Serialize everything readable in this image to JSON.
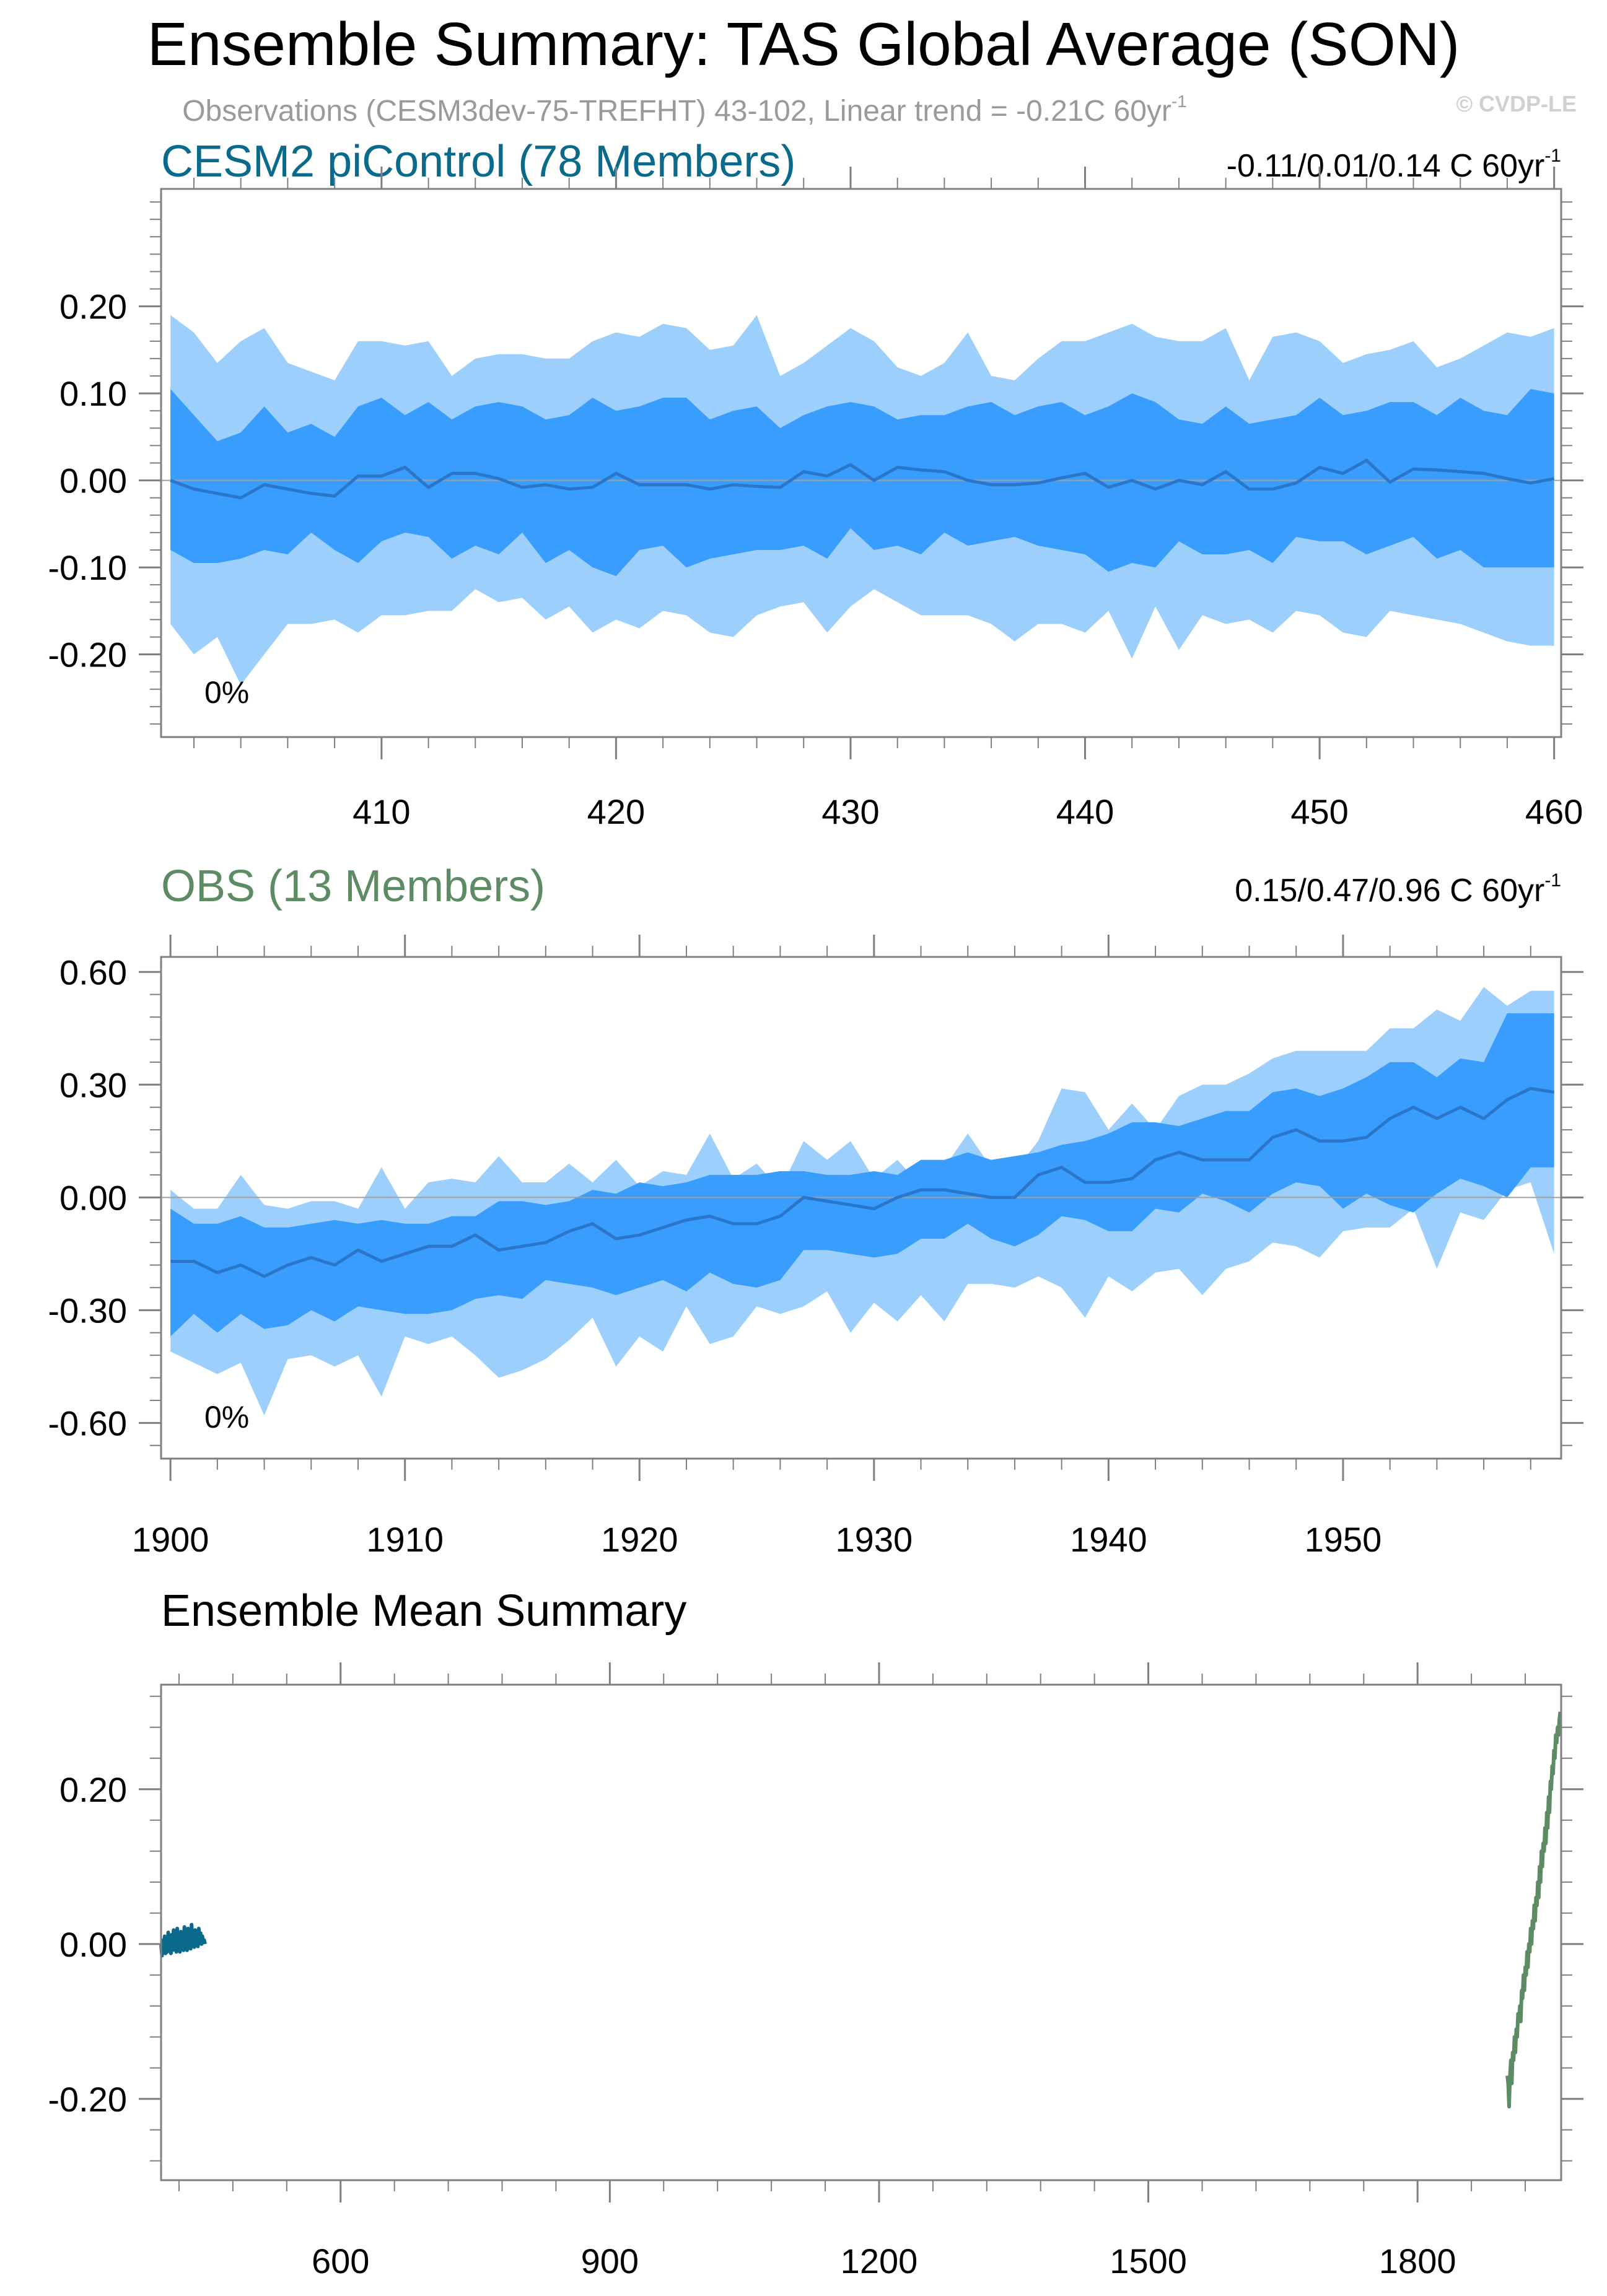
{
  "title": "Ensemble Summary: TAS Global Average (SON)",
  "subtitle": "Observations (CESM3dev-75-TREFHT) 43-102, Linear trend = -0.21C 60yr",
  "subtitle_sup": "-1",
  "watermark": "© CVDP-LE",
  "colors": {
    "band_outer": "#9ccffc",
    "band_inner": "#389dfd",
    "mean_line": "#2a76cb",
    "zero_line": "#a0a0a0",
    "cesm_title": "#0a6a8c",
    "obs_title": "#5d8b63",
    "axis": "#000000",
    "grid": "#bfbfbf"
  },
  "chart_data": [
    {
      "id": "cesm2",
      "type": "area",
      "title": "CESM2 piControl (78 Members)",
      "trend_label": "-0.11/0.01/0.14 C 60yr",
      "trend_sup": "-1",
      "percent_label": "0%",
      "x_start": 401,
      "xlim": [
        400.6,
        460.3
      ],
      "ylim": [
        -0.295,
        0.335
      ],
      "xticks": [
        410,
        420,
        430,
        440,
        450,
        460
      ],
      "yticks": [
        0.2,
        0.1,
        0.0,
        -0.1,
        -0.2
      ],
      "ytick_labels": [
        "0.20",
        "0.10",
        "0.00",
        "-0.10",
        "-0.20"
      ],
      "series": [
        {
          "name": "p97.5",
          "values": [
            0.19,
            0.17,
            0.135,
            0.16,
            0.175,
            0.135,
            0.125,
            0.115,
            0.16,
            0.16,
            0.155,
            0.16,
            0.12,
            0.14,
            0.145,
            0.145,
            0.14,
            0.14,
            0.16,
            0.17,
            0.165,
            0.18,
            0.175,
            0.15,
            0.155,
            0.19,
            0.12,
            0.135,
            0.155,
            0.175,
            0.16,
            0.13,
            0.12,
            0.135,
            0.17,
            0.12,
            0.115,
            0.14,
            0.16,
            0.16,
            0.17,
            0.18,
            0.165,
            0.16,
            0.16,
            0.175,
            0.115,
            0.165,
            0.17,
            0.16,
            0.135,
            0.145,
            0.15,
            0.16,
            0.13,
            0.14,
            0.155,
            0.17,
            0.165,
            0.175
          ]
        },
        {
          "name": "p83",
          "values": [
            0.105,
            0.075,
            0.045,
            0.055,
            0.085,
            0.055,
            0.065,
            0.05,
            0.085,
            0.095,
            0.075,
            0.09,
            0.07,
            0.085,
            0.09,
            0.085,
            0.07,
            0.075,
            0.095,
            0.08,
            0.085,
            0.095,
            0.095,
            0.07,
            0.08,
            0.085,
            0.06,
            0.075,
            0.085,
            0.09,
            0.085,
            0.07,
            0.075,
            0.075,
            0.085,
            0.09,
            0.075,
            0.085,
            0.09,
            0.075,
            0.085,
            0.1,
            0.09,
            0.07,
            0.065,
            0.085,
            0.065,
            0.07,
            0.075,
            0.095,
            0.075,
            0.08,
            0.09,
            0.09,
            0.075,
            0.095,
            0.08,
            0.075,
            0.105,
            0.1
          ]
        },
        {
          "name": "mean",
          "values": [
            0.0,
            -0.01,
            -0.015,
            -0.02,
            -0.005,
            -0.01,
            -0.015,
            -0.018,
            0.005,
            0.005,
            0.015,
            -0.008,
            0.008,
            0.008,
            0.002,
            -0.008,
            -0.005,
            -0.01,
            -0.008,
            0.008,
            -0.005,
            -0.005,
            -0.005,
            -0.01,
            -0.005,
            -0.007,
            -0.008,
            0.01,
            0.005,
            0.018,
            0.0,
            0.015,
            0.012,
            0.01,
            0.0,
            -0.005,
            -0.005,
            -0.003,
            0.003,
            0.008,
            -0.008,
            0.0,
            -0.01,
            0.0,
            -0.005,
            0.01,
            -0.01,
            -0.01,
            -0.003,
            0.015,
            0.008,
            0.023,
            -0.002,
            0.013,
            0.012,
            0.01,
            0.008,
            0.002,
            -0.003,
            0.002
          ]
        },
        {
          "name": "p17",
          "values": [
            -0.08,
            -0.095,
            -0.095,
            -0.09,
            -0.08,
            -0.085,
            -0.06,
            -0.08,
            -0.095,
            -0.07,
            -0.06,
            -0.065,
            -0.09,
            -0.075,
            -0.085,
            -0.06,
            -0.095,
            -0.08,
            -0.1,
            -0.11,
            -0.08,
            -0.075,
            -0.1,
            -0.09,
            -0.085,
            -0.08,
            -0.08,
            -0.075,
            -0.09,
            -0.055,
            -0.08,
            -0.075,
            -0.085,
            -0.06,
            -0.075,
            -0.07,
            -0.065,
            -0.075,
            -0.08,
            -0.085,
            -0.105,
            -0.095,
            -0.1,
            -0.07,
            -0.085,
            -0.085,
            -0.08,
            -0.095,
            -0.065,
            -0.07,
            -0.07,
            -0.085,
            -0.075,
            -0.065,
            -0.09,
            -0.08,
            -0.1,
            -0.1,
            -0.1,
            -0.1
          ]
        },
        {
          "name": "p2.5",
          "values": [
            -0.165,
            -0.2,
            -0.18,
            -0.235,
            -0.2,
            -0.165,
            -0.165,
            -0.16,
            -0.175,
            -0.155,
            -0.155,
            -0.15,
            -0.15,
            -0.125,
            -0.14,
            -0.135,
            -0.16,
            -0.145,
            -0.175,
            -0.16,
            -0.17,
            -0.15,
            -0.155,
            -0.175,
            -0.18,
            -0.155,
            -0.145,
            -0.14,
            -0.175,
            -0.145,
            -0.125,
            -0.14,
            -0.155,
            -0.155,
            -0.155,
            -0.165,
            -0.185,
            -0.165,
            -0.165,
            -0.175,
            -0.15,
            -0.205,
            -0.145,
            -0.195,
            -0.155,
            -0.165,
            -0.16,
            -0.175,
            -0.15,
            -0.155,
            -0.175,
            -0.18,
            -0.15,
            -0.155,
            -0.16,
            -0.165,
            -0.175,
            -0.185,
            -0.19,
            -0.19
          ]
        }
      ]
    },
    {
      "id": "obs",
      "type": "area",
      "title": "OBS (13 Members)",
      "trend_label": "0.15/0.47/0.96 C 60yr",
      "trend_sup": "-1",
      "percent_label": "0%",
      "x_start": 1900,
      "xlim": [
        1899.6,
        1959.3
      ],
      "ylim": [
        -0.695,
        0.64
      ],
      "xticks": [
        1900,
        1910,
        1920,
        1930,
        1940,
        1950
      ],
      "yticks": [
        0.6,
        0.3,
        0.0,
        -0.3,
        -0.6
      ],
      "ytick_labels": [
        "0.60",
        "0.30",
        "0.00",
        "-0.30",
        "-0.60"
      ],
      "series": [
        {
          "name": "p97.5",
          "values": [
            0.02,
            -0.03,
            -0.03,
            0.06,
            -0.02,
            -0.03,
            -0.01,
            -0.01,
            -0.03,
            0.08,
            -0.03,
            0.04,
            0.05,
            0.04,
            0.11,
            0.04,
            0.04,
            0.09,
            0.04,
            0.1,
            0.03,
            0.07,
            0.06,
            0.17,
            0.05,
            0.09,
            0.02,
            0.15,
            0.1,
            0.15,
            0.05,
            0.1,
            0.03,
            0.08,
            0.17,
            0.08,
            0.07,
            0.15,
            0.29,
            0.28,
            0.18,
            0.25,
            0.18,
            0.27,
            0.3,
            0.3,
            0.33,
            0.37,
            0.39,
            0.39,
            0.39,
            0.39,
            0.45,
            0.45,
            0.5,
            0.47,
            0.56,
            0.51,
            0.55,
            0.55
          ]
        },
        {
          "name": "p83",
          "values": [
            -0.03,
            -0.07,
            -0.07,
            -0.05,
            -0.08,
            -0.08,
            -0.07,
            -0.06,
            -0.07,
            -0.06,
            -0.07,
            -0.07,
            -0.05,
            -0.05,
            -0.01,
            -0.01,
            -0.02,
            -0.01,
            0.02,
            0.01,
            0.04,
            0.03,
            0.04,
            0.06,
            0.06,
            0.06,
            0.07,
            0.07,
            0.06,
            0.06,
            0.07,
            0.06,
            0.1,
            0.1,
            0.12,
            0.1,
            0.11,
            0.12,
            0.14,
            0.15,
            0.17,
            0.2,
            0.2,
            0.19,
            0.21,
            0.23,
            0.23,
            0.28,
            0.29,
            0.27,
            0.29,
            0.32,
            0.36,
            0.36,
            0.32,
            0.37,
            0.36,
            0.49,
            0.49,
            0.49
          ]
        },
        {
          "name": "mean",
          "values": [
            -0.17,
            -0.17,
            -0.2,
            -0.18,
            -0.21,
            -0.18,
            -0.16,
            -0.18,
            -0.14,
            -0.17,
            -0.15,
            -0.13,
            -0.13,
            -0.1,
            -0.14,
            -0.13,
            -0.12,
            -0.09,
            -0.07,
            -0.11,
            -0.1,
            -0.08,
            -0.06,
            -0.05,
            -0.07,
            -0.07,
            -0.05,
            0.0,
            -0.01,
            -0.02,
            -0.03,
            0.0,
            0.02,
            0.02,
            0.01,
            0.0,
            0.0,
            0.06,
            0.08,
            0.04,
            0.04,
            0.05,
            0.1,
            0.12,
            0.1,
            0.1,
            0.1,
            0.16,
            0.18,
            0.15,
            0.15,
            0.16,
            0.21,
            0.24,
            0.21,
            0.24,
            0.21,
            0.26,
            0.29,
            0.28
          ]
        },
        {
          "name": "p17",
          "values": [
            -0.37,
            -0.31,
            -0.36,
            -0.31,
            -0.35,
            -0.34,
            -0.3,
            -0.33,
            -0.29,
            -0.3,
            -0.31,
            -0.31,
            -0.3,
            -0.27,
            -0.26,
            -0.27,
            -0.22,
            -0.23,
            -0.24,
            -0.26,
            -0.24,
            -0.22,
            -0.25,
            -0.2,
            -0.23,
            -0.24,
            -0.22,
            -0.14,
            -0.14,
            -0.15,
            -0.16,
            -0.15,
            -0.11,
            -0.11,
            -0.07,
            -0.11,
            -0.13,
            -0.1,
            -0.05,
            -0.06,
            -0.09,
            -0.09,
            -0.03,
            -0.04,
            0.01,
            -0.01,
            -0.04,
            0.01,
            0.04,
            0.03,
            -0.03,
            0.01,
            -0.02,
            -0.04,
            0.01,
            0.05,
            0.03,
            0.0,
            0.08,
            0.08
          ]
        },
        {
          "name": "p2.5",
          "values": [
            -0.41,
            -0.44,
            -0.47,
            -0.44,
            -0.58,
            -0.43,
            -0.42,
            -0.45,
            -0.42,
            -0.53,
            -0.37,
            -0.39,
            -0.37,
            -0.42,
            -0.48,
            -0.46,
            -0.43,
            -0.38,
            -0.32,
            -0.45,
            -0.37,
            -0.41,
            -0.29,
            -0.39,
            -0.37,
            -0.29,
            -0.31,
            -0.29,
            -0.25,
            -0.36,
            -0.28,
            -0.33,
            -0.26,
            -0.33,
            -0.23,
            -0.23,
            -0.24,
            -0.21,
            -0.24,
            -0.32,
            -0.21,
            -0.25,
            -0.2,
            -0.19,
            -0.26,
            -0.19,
            -0.17,
            -0.12,
            -0.13,
            -0.16,
            -0.09,
            -0.08,
            -0.08,
            -0.03,
            -0.19,
            -0.04,
            -0.06,
            0.02,
            0.04,
            -0.15
          ]
        }
      ]
    },
    {
      "id": "ensmean",
      "type": "line",
      "title": "Ensemble Mean Summary",
      "xlim": [
        400,
        1960
      ],
      "ylim": [
        -0.305,
        0.335
      ],
      "xticks": [
        600,
        900,
        1200,
        1500,
        1800
      ],
      "yticks": [
        0.2,
        0.0,
        -0.2
      ],
      "ytick_labels": [
        "0.20",
        "0.00",
        "-0.20"
      ],
      "series": [
        {
          "name": "CESM2 piControl",
          "x_start": 400,
          "x_step": 1,
          "values": [
            0.0,
            -0.015,
            0.005,
            -0.01,
            0.01,
            -0.012,
            0.008,
            -0.01,
            0.015,
            -0.005,
            0.01,
            -0.012,
            0.012,
            -0.008,
            0.018,
            -0.005,
            0.012,
            -0.01,
            0.02,
            -0.006,
            0.015,
            -0.01,
            0.016,
            -0.006,
            0.012,
            -0.008,
            0.022,
            -0.004,
            0.014,
            -0.008,
            0.02,
            -0.005,
            0.012,
            -0.006,
            0.025,
            0.0,
            0.015,
            -0.004,
            0.018,
            0.002,
            0.012,
            -0.003,
            0.02,
            0.004,
            0.014,
            0.0,
            0.01,
            0.003,
            0.005,
            0.0
          ]
        },
        {
          "name": "OBS",
          "x_start": 1900,
          "x_step": 1,
          "values": [
            -0.17,
            -0.18,
            -0.21,
            -0.17,
            -0.15,
            -0.18,
            -0.14,
            -0.15,
            -0.12,
            -0.14,
            -0.11,
            -0.12,
            -0.09,
            -0.1,
            -0.08,
            -0.1,
            -0.06,
            -0.07,
            -0.04,
            -0.06,
            -0.03,
            -0.04,
            -0.01,
            -0.03,
            0.0,
            -0.01,
            0.02,
            0.0,
            0.03,
            0.02,
            0.05,
            0.03,
            0.06,
            0.05,
            0.08,
            0.06,
            0.1,
            0.08,
            0.12,
            0.1,
            0.13,
            0.12,
            0.15,
            0.13,
            0.17,
            0.15,
            0.19,
            0.17,
            0.21,
            0.2,
            0.23,
            0.22,
            0.25,
            0.24,
            0.27,
            0.26,
            0.28,
            0.27,
            0.29,
            0.3
          ]
        }
      ]
    }
  ]
}
